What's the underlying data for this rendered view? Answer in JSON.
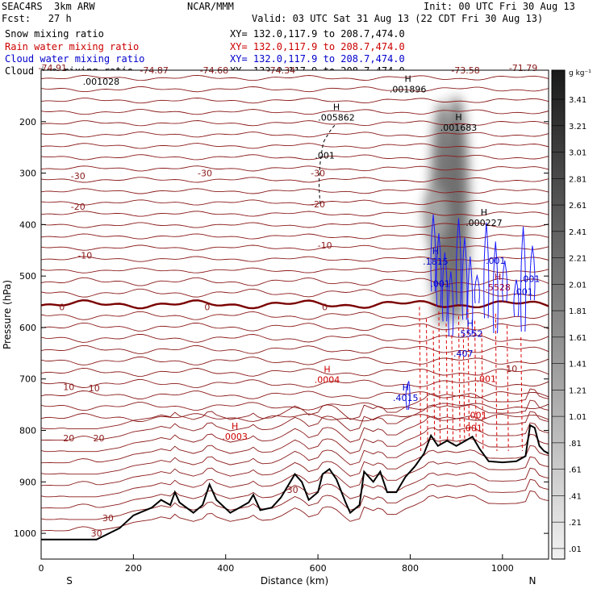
{
  "header": {
    "model": "SEAC4RS  3km ARW",
    "org": "NCAR/MMM",
    "init": "Init: 00 UTC Fri 30 Aug 13",
    "fcst": "Fcst:   27 h",
    "valid": "Valid: 03 UTC Sat 31 Aug 13 (22 CDT Fri 30 Aug 13)",
    "fields": [
      {
        "label": "Snow mixing ratio",
        "xy": "XY= 132.0,117.9 to 208.7,474.0",
        "color": "#000000"
      },
      {
        "label": "Rain water mixing ratio",
        "xy": "XY= 132.0,117.9 to 208.7,474.0",
        "color": "#cc0000"
      },
      {
        "label": "Cloud water mixing ratio",
        "xy": "XY= 132.0,117.9 to 208.7,474.0",
        "color": "#0000cc"
      },
      {
        "label": "Cloud ice mixing ratio",
        "xy": "XY= 132.0,117.9 to 208.7,474.0",
        "color": "#000000"
      }
    ]
  },
  "chart_data": {
    "type": "cross-section",
    "xlabel": "Distance (km)",
    "ylabel": "Pressure (hPa)",
    "xlim": [
      0,
      1100
    ],
    "ylim": [
      100,
      1050
    ],
    "x_ticks": [
      0,
      200,
      400,
      600,
      800,
      1000
    ],
    "y_ticks": [
      200,
      300,
      400,
      500,
      600,
      700,
      800,
      900,
      1000
    ],
    "x_end_labels": {
      "left": "S",
      "right": "N"
    },
    "colorbar": {
      "unit": "g kg⁻¹",
      "labels": [
        "3.41",
        "3.21",
        "3.01",
        "2.81",
        "2.61",
        "2.41",
        "2.21",
        "2.01",
        "1.81",
        "1.61",
        "1.41",
        "1.21",
        "1.01",
        ".81",
        ".61",
        ".41",
        ".21",
        ".01"
      ]
    },
    "temperature_labels": [
      {
        "text": "-74.91",
        "x": 25,
        "p": 95
      },
      {
        "text": "-74.87",
        "x": 245,
        "p": 100
      },
      {
        "text": "-74.68",
        "x": 375,
        "p": 100
      },
      {
        "text": "-74.34",
        "x": 520,
        "p": 100
      },
      {
        "text": "-73.58",
        "x": 920,
        "p": 100
      },
      {
        "text": "-71.79",
        "x": 1045,
        "p": 95
      },
      {
        "text": "-30",
        "x": 80,
        "p": 305
      },
      {
        "text": "-30",
        "x": 355,
        "p": 300
      },
      {
        "text": "-30",
        "x": 600,
        "p": 300
      },
      {
        "text": "-20",
        "x": 80,
        "p": 365
      },
      {
        "text": "-20",
        "x": 600,
        "p": 360
      },
      {
        "text": "-10",
        "x": 95,
        "p": 460
      },
      {
        "text": "-10",
        "x": 615,
        "p": 440
      },
      {
        "text": "0",
        "x": 45,
        "p": 560
      },
      {
        "text": "0",
        "x": 360,
        "p": 560
      },
      {
        "text": "0",
        "x": 615,
        "p": 560
      },
      {
        "text": "10",
        "x": 60,
        "p": 715
      },
      {
        "text": "10",
        "x": 115,
        "p": 718
      },
      {
        "text": "10",
        "x": 1020,
        "p": 680
      },
      {
        "text": "20",
        "x": 60,
        "p": 815
      },
      {
        "text": "20",
        "x": 125,
        "p": 815
      },
      {
        "text": "30",
        "x": 545,
        "p": 915
      },
      {
        "text": "30",
        "x": 145,
        "p": 970
      },
      {
        "text": "30",
        "x": 120,
        "p": 1000
      }
    ],
    "extrema": [
      {
        "H": "",
        "value": ".001028",
        "x": 130,
        "p": 120,
        "color": "#000000"
      },
      {
        "H": "H",
        "value": ".001896",
        "x": 795,
        "p": 135,
        "color": "#000000"
      },
      {
        "H": "H",
        "value": ".005862",
        "x": 640,
        "p": 190,
        "color": "#000000"
      },
      {
        "H": "H",
        "value": ".001683",
        "x": 905,
        "p": 210,
        "color": "#000000"
      },
      {
        "H": "H",
        "value": ".000227",
        "x": 960,
        "p": 395,
        "color": "#000000"
      },
      {
        "H": "H",
        "value": ".1815",
        "x": 855,
        "p": 470,
        "color": "#0000cc"
      },
      {
        "H": "H",
        "value": ".5528",
        "x": 990,
        "p": 520,
        "color": "#990033"
      },
      {
        "H": "H",
        "value": ".5552",
        "x": 930,
        "p": 610,
        "color": "#0000cc"
      },
      {
        "H": "H",
        "value": ".0004",
        "x": 620,
        "p": 700,
        "color": "#cc0000"
      },
      {
        "H": "H",
        "value": ".4015",
        "x": 790,
        "p": 735,
        "color": "#0000cc"
      },
      {
        "H": "H",
        "value": ".0003",
        "x": 420,
        "p": 810,
        "color": "#cc0000"
      }
    ],
    "contour_labels": [
      {
        "text": ".001",
        "x": 615,
        "p": 265,
        "color": "#000000"
      },
      {
        "text": ".001",
        "x": 865,
        "p": 515,
        "color": "#0000cc"
      },
      {
        "text": ".001",
        "x": 985,
        "p": 470,
        "color": "#0000cc"
      },
      {
        "text": ".001",
        "x": 1060,
        "p": 505,
        "color": "#0000cc"
      },
      {
        "text": ".001",
        "x": 1045,
        "p": 530,
        "color": "#0000cc"
      },
      {
        "text": ".407",
        "x": 915,
        "p": 650,
        "color": "#0000cc"
      },
      {
        "text": ".001",
        "x": 965,
        "p": 700,
        "color": "#cc0000"
      },
      {
        "text": ".001",
        "x": 945,
        "p": 770,
        "color": "#cc0000"
      },
      {
        "text": ".001",
        "x": 935,
        "p": 795,
        "color": "#cc0000"
      }
    ],
    "terrain": [
      [
        0,
        1012
      ],
      [
        120,
        1012
      ],
      [
        170,
        990
      ],
      [
        200,
        965
      ],
      [
        240,
        950
      ],
      [
        260,
        935
      ],
      [
        280,
        945
      ],
      [
        290,
        920
      ],
      [
        300,
        940
      ],
      [
        330,
        960
      ],
      [
        350,
        945
      ],
      [
        365,
        905
      ],
      [
        380,
        935
      ],
      [
        410,
        960
      ],
      [
        430,
        950
      ],
      [
        450,
        940
      ],
      [
        460,
        925
      ],
      [
        475,
        955
      ],
      [
        500,
        950
      ],
      [
        520,
        930
      ],
      [
        540,
        900
      ],
      [
        550,
        885
      ],
      [
        565,
        900
      ],
      [
        580,
        935
      ],
      [
        600,
        920
      ],
      [
        610,
        885
      ],
      [
        625,
        875
      ],
      [
        640,
        895
      ],
      [
        660,
        940
      ],
      [
        670,
        960
      ],
      [
        690,
        945
      ],
      [
        700,
        880
      ],
      [
        720,
        900
      ],
      [
        735,
        880
      ],
      [
        750,
        920
      ],
      [
        770,
        920
      ],
      [
        790,
        890
      ],
      [
        810,
        870
      ],
      [
        830,
        845
      ],
      [
        845,
        810
      ],
      [
        860,
        830
      ],
      [
        880,
        820
      ],
      [
        900,
        830
      ],
      [
        920,
        820
      ],
      [
        935,
        812
      ],
      [
        950,
        835
      ],
      [
        970,
        860
      ],
      [
        1000,
        862
      ],
      [
        1030,
        860
      ],
      [
        1050,
        850
      ],
      [
        1060,
        790
      ],
      [
        1070,
        795
      ],
      [
        1080,
        830
      ],
      [
        1090,
        840
      ],
      [
        1100,
        845
      ]
    ],
    "snow_plume": [
      {
        "x": 870,
        "p_top": 160,
        "p_bot": 600,
        "intensity": 0.55
      },
      {
        "x": 900,
        "p_top": 150,
        "p_bot": 590,
        "intensity": 0.6
      },
      {
        "x": 855,
        "p_top": 330,
        "p_bot": 430,
        "intensity": 0.35
      }
    ]
  }
}
